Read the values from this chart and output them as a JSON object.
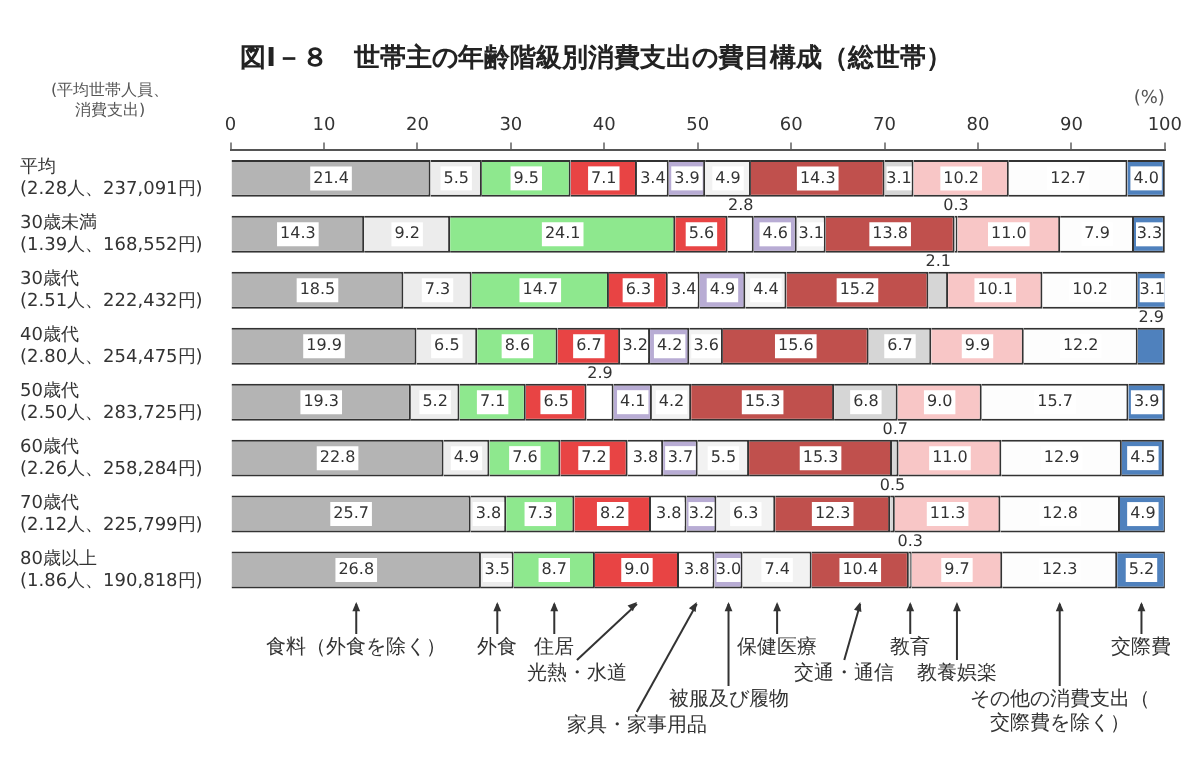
{
  "chart_data": {
    "type": "bar",
    "orientation": "horizontal",
    "stacked": true,
    "title": "図Ⅰ－８　世帯主の年齢階級別消費支出の費目構成（総世帯）",
    "xlabel": "(%)",
    "ylabel": "(平均世帯人員、消費支出)",
    "categories": [
      "平均\n(2.28人、237,091円)",
      "30歳未満\n(1.39人、168,552円)",
      "30歳代\n(2.51人、222,432円)",
      "40歳代\n(2.80人、254,475円)",
      "50歳代\n(2.50人、283,725円)",
      "60歳代\n(2.26人、258,284円)",
      "70歳代\n(2.12人、225,799円)",
      "80歳以上\n(1.86人、190,818円)"
    ],
    "xlim": [
      0,
      100
    ],
    "xticks": [
      0,
      10,
      20,
      30,
      40,
      50,
      60,
      70,
      80,
      90,
      100
    ],
    "legend": false,
    "series": [
      {
        "name": "食料（外食を除く）",
        "color": "#b4b4b4",
        "values": [
          21.4,
          14.3,
          18.5,
          19.9,
          19.3,
          22.8,
          25.7,
          26.8
        ],
        "value_labels": [
          "21.4",
          "14.3",
          "18.5",
          "19.9",
          "19.3",
          "22.8",
          "25.7",
          "26.8"
        ]
      },
      {
        "name": "外食",
        "color": "#ececec",
        "values": [
          5.5,
          9.2,
          7.3,
          6.5,
          5.2,
          4.9,
          3.8,
          3.5
        ],
        "value_labels": [
          "5.5",
          "9.2",
          "7.3",
          "6.5",
          "5.2",
          "4.9",
          "3.8",
          "3.5"
        ]
      },
      {
        "name": "住居",
        "color": "#8ee88e",
        "values": [
          9.5,
          24.1,
          14.7,
          8.6,
          7.1,
          7.6,
          7.3,
          8.7
        ],
        "value_labels": [
          "9.5",
          "24.1",
          "14.7",
          "8.6",
          "7.1",
          "7.6",
          "7.3",
          "8.7"
        ]
      },
      {
        "name": "光熱・水道",
        "color": "#e84444",
        "values": [
          7.1,
          5.6,
          6.3,
          6.7,
          6.5,
          7.2,
          8.2,
          9.0
        ],
        "value_labels": [
          "7.1",
          "5.6",
          "6.3",
          "6.7",
          "6.5",
          "7.2",
          "8.2",
          "9.0"
        ]
      },
      {
        "name": "家具・家事用品",
        "color": "#ffffff",
        "values": [
          3.4,
          2.8,
          3.4,
          3.2,
          2.9,
          3.8,
          3.8,
          3.8
        ],
        "value_labels": [
          "3.4",
          "2.8",
          "3.4",
          "3.2",
          "2.9",
          "3.8",
          "3.8",
          "3.8"
        ]
      },
      {
        "name": "被服及び履物",
        "color": "#b8acd4",
        "values": [
          3.9,
          4.6,
          4.9,
          4.2,
          4.1,
          3.7,
          3.2,
          3.0
        ],
        "value_labels": [
          "3.9",
          "4.6",
          "4.9",
          "4.2",
          "4.1",
          "3.7",
          "3.2",
          "3.0"
        ]
      },
      {
        "name": "保健医療",
        "color": "#f2f2f2",
        "values": [
          4.9,
          3.1,
          4.4,
          3.6,
          4.2,
          5.5,
          6.3,
          7.4
        ],
        "value_labels": [
          "4.9",
          "3.1",
          "4.4",
          "3.6",
          "4.2",
          "5.5",
          "6.3",
          "7.4"
        ]
      },
      {
        "name": "交通・通信",
        "color": "#c0504d",
        "values": [
          14.3,
          13.8,
          15.2,
          15.6,
          15.3,
          15.3,
          12.3,
          10.4
        ],
        "value_labels": [
          "14.3",
          "13.8",
          "15.2",
          "15.6",
          "15.3",
          "15.3",
          "12.3",
          "10.4"
        ]
      },
      {
        "name": "教育",
        "color": "#d6d6d6",
        "values": [
          3.1,
          0.3,
          2.1,
          6.7,
          6.8,
          0.7,
          0.5,
          0.3
        ],
        "value_labels": [
          "3.1",
          "0.3",
          "2.1",
          "6.7",
          "6.8",
          "0.7",
          "0.5",
          "0.3"
        ]
      },
      {
        "name": "教養娯楽",
        "color": "#f8c6c6",
        "values": [
          10.2,
          11.0,
          10.1,
          9.9,
          9.0,
          11.0,
          11.3,
          9.7
        ],
        "value_labels": [
          "10.2",
          "11.0",
          "10.1",
          "9.9",
          "9.0",
          "11.0",
          "11.3",
          "9.7"
        ]
      },
      {
        "name": "その他の消費支出（交際費を除く）",
        "color": "#fdfdfd",
        "values": [
          12.7,
          7.9,
          10.2,
          12.2,
          15.7,
          12.9,
          12.8,
          12.3
        ],
        "value_labels": [
          "12.7",
          "7.9",
          "10.2",
          "12.2",
          "15.7",
          "12.9",
          "12.8",
          "12.3"
        ]
      },
      {
        "name": "交際費",
        "color": "#4f81bd",
        "values": [
          4.0,
          3.3,
          3.1,
          2.9,
          3.9,
          4.5,
          4.9,
          5.2
        ],
        "value_labels": [
          "4.0",
          "3.3",
          "3.1",
          "2.9",
          "3.9",
          "4.5",
          "4.9",
          "5.2"
        ]
      }
    ]
  }
}
